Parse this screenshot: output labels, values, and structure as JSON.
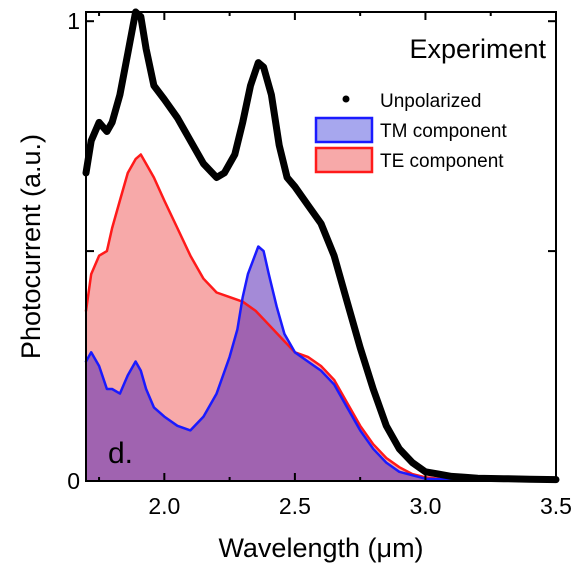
{
  "chart_data": {
    "type": "area",
    "title": "Experiment",
    "panel_label": "d.",
    "xlabel": "Wavelength (μm)",
    "ylabel": "Photocurrent (a.u.)",
    "xlim": [
      1.7,
      3.5
    ],
    "ylim": [
      0,
      1.02
    ],
    "x_ticks": [
      2.0,
      2.5,
      3.0,
      3.5
    ],
    "x_tick_labels": [
      "2.0",
      "2.5",
      "3.0",
      "3.5"
    ],
    "y_ticks": [
      0,
      1
    ],
    "y_tick_labels": [
      "0",
      "1"
    ],
    "grid": false,
    "legend_position": "top-right",
    "series": [
      {
        "name": "Unpolarized",
        "style": "line",
        "color": "#000000",
        "x": [
          1.7,
          1.72,
          1.75,
          1.78,
          1.8,
          1.83,
          1.86,
          1.89,
          1.91,
          1.93,
          1.96,
          2.0,
          2.05,
          2.1,
          2.15,
          2.2,
          2.23,
          2.27,
          2.3,
          2.33,
          2.36,
          2.38,
          2.41,
          2.44,
          2.47,
          2.5,
          2.55,
          2.6,
          2.65,
          2.7,
          2.75,
          2.8,
          2.85,
          2.9,
          2.95,
          3.0,
          3.05,
          3.1,
          3.15,
          3.2,
          3.3,
          3.4,
          3.5
        ],
        "y": [
          0.67,
          0.74,
          0.78,
          0.76,
          0.78,
          0.84,
          0.93,
          1.02,
          1.01,
          0.94,
          0.86,
          0.83,
          0.79,
          0.74,
          0.69,
          0.66,
          0.67,
          0.71,
          0.78,
          0.86,
          0.91,
          0.9,
          0.84,
          0.73,
          0.66,
          0.64,
          0.6,
          0.56,
          0.49,
          0.39,
          0.29,
          0.2,
          0.12,
          0.07,
          0.04,
          0.02,
          0.015,
          0.01,
          0.008,
          0.006,
          0.005,
          0.004,
          0.003
        ]
      },
      {
        "name": "TM component",
        "style": "area",
        "color": "#1a1aff",
        "fill": "#a7a7ee",
        "x": [
          1.7,
          1.72,
          1.75,
          1.78,
          1.8,
          1.83,
          1.86,
          1.89,
          1.91,
          1.93,
          1.96,
          2.0,
          2.05,
          2.1,
          2.15,
          2.2,
          2.25,
          2.28,
          2.3,
          2.32,
          2.34,
          2.36,
          2.38,
          2.4,
          2.43,
          2.46,
          2.5,
          2.55,
          2.6,
          2.65,
          2.7,
          2.75,
          2.8,
          2.85,
          2.9,
          3.0,
          3.1,
          3.2,
          3.3,
          3.5
        ],
        "y": [
          0.26,
          0.28,
          0.25,
          0.2,
          0.2,
          0.19,
          0.23,
          0.26,
          0.24,
          0.2,
          0.16,
          0.14,
          0.12,
          0.11,
          0.14,
          0.19,
          0.27,
          0.33,
          0.4,
          0.45,
          0.48,
          0.51,
          0.5,
          0.45,
          0.38,
          0.32,
          0.28,
          0.26,
          0.24,
          0.21,
          0.16,
          0.11,
          0.07,
          0.04,
          0.02,
          0.005,
          0.003,
          0.002,
          0.002,
          0.001
        ]
      },
      {
        "name": "TE component",
        "style": "area",
        "color": "#ff1a1a",
        "fill": "#f7a9a9",
        "x": [
          1.7,
          1.72,
          1.75,
          1.78,
          1.8,
          1.83,
          1.86,
          1.89,
          1.91,
          1.93,
          1.96,
          2.0,
          2.05,
          2.1,
          2.15,
          2.2,
          2.25,
          2.3,
          2.35,
          2.4,
          2.45,
          2.5,
          2.55,
          2.6,
          2.65,
          2.7,
          2.75,
          2.8,
          2.85,
          2.9,
          2.95,
          3.0,
          3.05,
          3.1,
          3.2,
          3.3,
          3.5
        ],
        "y": [
          0.37,
          0.45,
          0.49,
          0.5,
          0.55,
          0.61,
          0.67,
          0.7,
          0.71,
          0.69,
          0.66,
          0.61,
          0.55,
          0.49,
          0.44,
          0.41,
          0.4,
          0.39,
          0.37,
          0.34,
          0.31,
          0.28,
          0.27,
          0.25,
          0.22,
          0.17,
          0.12,
          0.08,
          0.05,
          0.03,
          0.015,
          0.008,
          0.005,
          0.003,
          0.002,
          0.001,
          0.001
        ]
      }
    ]
  }
}
